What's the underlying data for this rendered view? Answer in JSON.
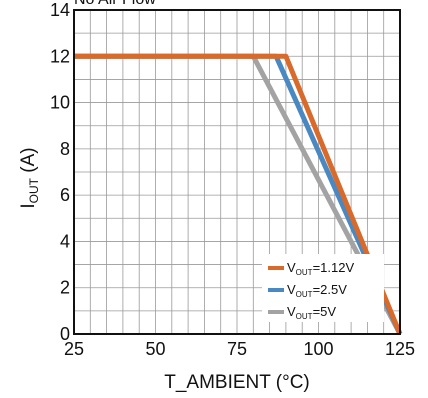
{
  "chart_data": {
    "type": "line",
    "title_partial": "No Air Flow",
    "xlabel": "T_AMBIENT (°C)",
    "ylabel": {
      "main": "I",
      "sub": "OUT",
      "rest": " (A)"
    },
    "xlim": [
      25,
      125
    ],
    "ylim": [
      0,
      14
    ],
    "xticks": [
      25,
      50,
      75,
      100,
      125
    ],
    "yticks": [
      0,
      2,
      4,
      6,
      8,
      10,
      12,
      14
    ],
    "grid": true,
    "grid_minor_x_step": 5,
    "grid_minor_y_step": 1,
    "legend_position": "bottom-right",
    "series": [
      {
        "name": {
          "main": "V",
          "sub": "OUT",
          "rest": "=1.12V"
        },
        "color": "#d86a2b",
        "x": [
          25,
          90,
          125
        ],
        "y": [
          12,
          12,
          0
        ]
      },
      {
        "name": {
          "main": "V",
          "sub": "OUT",
          "rest": "=2.5V"
        },
        "color": "#4a88c2",
        "x": [
          25,
          87,
          125
        ],
        "y": [
          12,
          12,
          0
        ]
      },
      {
        "name": {
          "main": "V",
          "sub": "OUT",
          "rest": "=5V"
        },
        "color": "#a3a3a3",
        "x": [
          25,
          80,
          125
        ],
        "y": [
          12,
          12,
          0
        ]
      }
    ]
  }
}
